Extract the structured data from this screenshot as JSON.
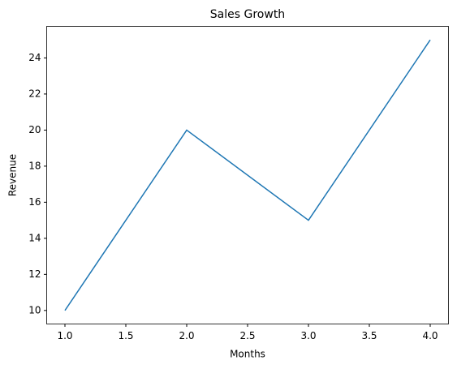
{
  "chart_data": {
    "type": "line",
    "title": "Sales Growth",
    "xlabel": "Months",
    "ylabel": "Revenue",
    "x": [
      1,
      2,
      3,
      4
    ],
    "series": [
      {
        "color": "#1f77b4",
        "values": [
          10,
          20,
          15,
          25
        ]
      }
    ],
    "xlim": [
      0.85,
      4.15
    ],
    "ylim": [
      9.25,
      25.75
    ],
    "xticks": [
      {
        "value": 1,
        "label": "1.0"
      },
      {
        "value": 1.5,
        "label": "1.5"
      },
      {
        "value": 2,
        "label": "2.0"
      },
      {
        "value": 2.5,
        "label": "2.5"
      },
      {
        "value": 3,
        "label": "3.0"
      },
      {
        "value": 3.5,
        "label": "3.5"
      },
      {
        "value": 4,
        "label": "4.0"
      }
    ],
    "yticks": [
      10,
      12,
      14,
      16,
      18,
      20,
      22,
      24
    ],
    "grid": false
  }
}
